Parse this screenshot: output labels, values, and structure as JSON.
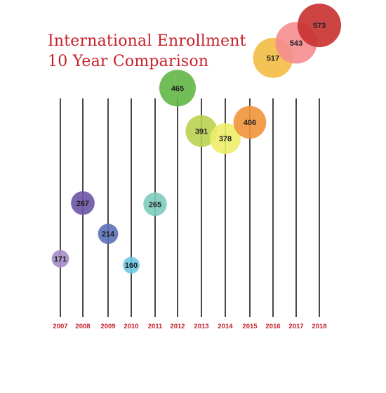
{
  "chart_data": {
    "type": "scatter",
    "title_line1": "International Enrollment",
    "title_line2": "10 Year Comparison",
    "categories": [
      "2007",
      "2008",
      "2009",
      "2010",
      "2011",
      "2012",
      "2013",
      "2014",
      "2015",
      "2016",
      "2017",
      "2018"
    ],
    "values": [
      171,
      267,
      214,
      160,
      265,
      465,
      391,
      378,
      406,
      517,
      543,
      573
    ],
    "colors": [
      "#a48cc6",
      "#6a55a6",
      "#5b70b8",
      "#6fc6e6",
      "#7dcbbd",
      "#62b646",
      "#b9d14f",
      "#eeee6a",
      "#ef9538",
      "#f3bd44",
      "#f58d8f",
      "#c8302f"
    ],
    "xlabel": "",
    "ylabel": "",
    "size_encodes_value": true,
    "grid": false
  }
}
